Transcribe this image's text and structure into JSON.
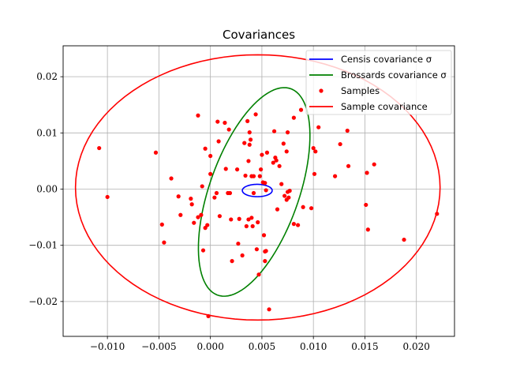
{
  "chart_data": {
    "type": "scatter",
    "title": "Covariances",
    "xlabel": "",
    "ylabel": "",
    "xlim": [
      -0.0143,
      0.0237
    ],
    "ylim": [
      -0.0262,
      0.0255
    ],
    "x_ticks": [
      -0.01,
      -0.005,
      0.0,
      0.005,
      0.01,
      0.015,
      0.02
    ],
    "x_tick_labels": [
      "−0.010",
      "−0.005",
      "0.000",
      "0.005",
      "0.010",
      "0.015",
      "0.020"
    ],
    "y_ticks": [
      -0.02,
      -0.01,
      0.0,
      0.01,
      0.02
    ],
    "y_tick_labels": [
      "−0.02",
      "−0.01",
      "0.00",
      "0.01",
      "0.02"
    ],
    "grid": true,
    "legend_position": "top-right",
    "legend": [
      {
        "label": "Censis covariance σ",
        "kind": "line",
        "color": "#0000ff"
      },
      {
        "label": "Brossards covariance σ",
        "kind": "line",
        "color": "#008000"
      },
      {
        "label": "Samples",
        "kind": "marker",
        "color": "#ff0000"
      },
      {
        "label": "Sample covariance",
        "kind": "line",
        "color": "#ff0000"
      }
    ],
    "ellipses": [
      {
        "name": "Censis covariance σ",
        "color": "#0000ff",
        "cx": 0.00455,
        "cy": -0.00025,
        "rx": 0.00145,
        "ry": 0.0011,
        "angle_deg": 0
      },
      {
        "name": "Brossards covariance σ",
        "color": "#008000",
        "cx": 0.00425,
        "cy": -0.0005,
        "rx": 0.0045,
        "ry": 0.0188,
        "angle_deg": -9.5
      },
      {
        "name": "Sample covariance",
        "color": "#ff0000",
        "cx": 0.0046,
        "cy": 0.0003,
        "rx": 0.0177,
        "ry": 0.0236,
        "angle_deg": 0
      }
    ],
    "samples": {
      "name": "Samples",
      "color": "#ff0000",
      "points": [
        [
          -0.0108,
          0.0073
        ],
        [
          -0.01,
          -0.0014
        ],
        [
          -0.0053,
          0.0065
        ],
        [
          -0.0047,
          -0.0063
        ],
        [
          -0.0045,
          -0.0095
        ],
        [
          -0.0038,
          0.0019
        ],
        [
          -0.0031,
          -0.0013
        ],
        [
          -0.0029,
          -0.0046
        ],
        [
          -0.0019,
          -0.0017
        ],
        [
          -0.0018,
          -0.0027
        ],
        [
          -0.0016,
          -0.006
        ],
        [
          -0.0012,
          -0.005
        ],
        [
          -0.0012,
          0.0131
        ],
        [
          -0.0009,
          -0.0046
        ],
        [
          -0.0008,
          0.0005
        ],
        [
          -0.0007,
          -0.0109
        ],
        [
          -0.0005,
          0.0072
        ],
        [
          -0.0005,
          -0.0069
        ],
        [
          -0.0003,
          -0.0064
        ],
        [
          -0.0002,
          -0.0226
        ],
        [
          0.0,
          0.0059
        ],
        [
          0.0,
          0.0027
        ],
        [
          0.0004,
          -0.0015
        ],
        [
          0.0006,
          -0.0007
        ],
        [
          0.0007,
          0.012
        ],
        [
          0.0008,
          0.0085
        ],
        [
          0.0009,
          -0.0048
        ],
        [
          0.0014,
          0.0118
        ],
        [
          0.0015,
          0.0036
        ],
        [
          0.0017,
          -0.0007
        ],
        [
          0.0018,
          0.0106
        ],
        [
          0.0019,
          -0.0007
        ],
        [
          0.002,
          -0.0054
        ],
        [
          0.0021,
          -0.0128
        ],
        [
          0.0026,
          0.0035
        ],
        [
          0.0027,
          -0.0097
        ],
        [
          0.0028,
          -0.0053
        ],
        [
          0.0031,
          -0.0118
        ],
        [
          0.0033,
          0.0082
        ],
        [
          0.0034,
          0.0024
        ],
        [
          0.0035,
          -0.0066
        ],
        [
          0.0036,
          0.0121
        ],
        [
          0.0037,
          0.005
        ],
        [
          0.0037,
          -0.0054
        ],
        [
          0.0038,
          0.0101
        ],
        [
          0.0038,
          0.0079
        ],
        [
          0.0039,
          0.0088
        ],
        [
          0.004,
          -0.0051
        ],
        [
          0.004,
          0.0023
        ],
        [
          0.0041,
          -0.0066
        ],
        [
          0.0042,
          -0.0007
        ],
        [
          0.0042,
          0.0023
        ],
        [
          0.0044,
          0.0133
        ],
        [
          0.0045,
          -0.0107
        ],
        [
          0.0046,
          -0.0059
        ],
        [
          0.0047,
          -0.0152
        ],
        [
          0.0048,
          0.0023
        ],
        [
          0.0049,
          0.0035
        ],
        [
          0.005,
          0.0061
        ],
        [
          0.0051,
          0.0012
        ],
        [
          0.0052,
          -0.0082
        ],
        [
          0.0053,
          -0.0111
        ],
        [
          0.0053,
          -0.0128
        ],
        [
          0.0053,
          0.0011
        ],
        [
          0.0054,
          -0.0002
        ],
        [
          0.0054,
          -0.011
        ],
        [
          0.0055,
          0.0065
        ],
        [
          0.0057,
          -0.0214
        ],
        [
          0.0061,
          0.0047
        ],
        [
          0.0062,
          0.0103
        ],
        [
          0.0063,
          0.0056
        ],
        [
          0.0064,
          0.0051
        ],
        [
          0.0065,
          -0.0036
        ],
        [
          0.0067,
          0.0041
        ],
        [
          0.0069,
          0.0009
        ],
        [
          0.0071,
          0.0081
        ],
        [
          0.0072,
          -0.0012
        ],
        [
          0.0074,
          -0.0019
        ],
        [
          0.0074,
          0.0067
        ],
        [
          0.0075,
          -0.0005
        ],
        [
          0.0075,
          0.0101
        ],
        [
          0.0076,
          -0.0015
        ],
        [
          0.0077,
          -0.0003
        ],
        [
          0.0081,
          -0.0062
        ],
        [
          0.0081,
          0.0127
        ],
        [
          0.0085,
          -0.0064
        ],
        [
          0.0088,
          0.0141
        ],
        [
          0.009,
          -0.0032
        ],
        [
          0.0098,
          -0.0034
        ],
        [
          0.01,
          0.0073
        ],
        [
          0.0101,
          0.0027
        ],
        [
          0.0102,
          0.0067
        ],
        [
          0.0105,
          0.011
        ],
        [
          0.0121,
          0.0023
        ],
        [
          0.0126,
          0.008
        ],
        [
          0.0133,
          0.0104
        ],
        [
          0.0134,
          0.0041
        ],
        [
          0.0151,
          -0.0028
        ],
        [
          0.0152,
          0.0029
        ],
        [
          0.0153,
          -0.0072
        ],
        [
          0.0159,
          0.0044
        ],
        [
          0.0188,
          -0.009
        ],
        [
          0.022,
          -0.0044
        ]
      ]
    }
  }
}
